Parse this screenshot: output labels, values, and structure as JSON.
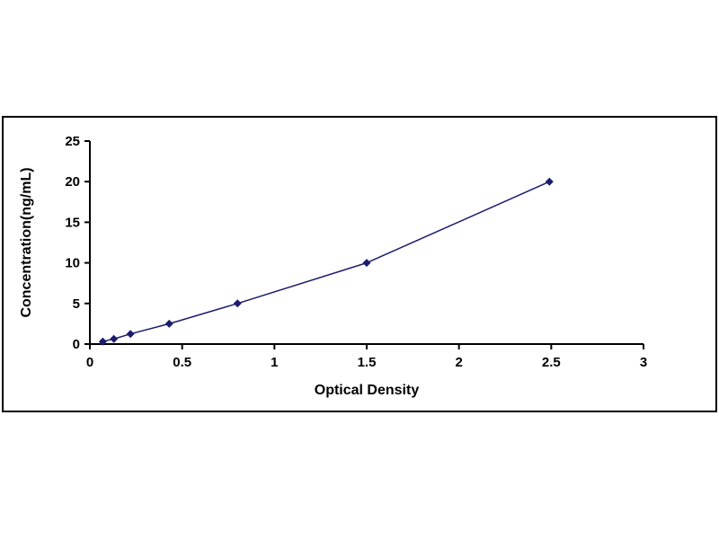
{
  "page": {
    "background": "#ffffff"
  },
  "chart_data": {
    "type": "line",
    "title": "",
    "xlabel": "Optical Density",
    "ylabel": "Concentration(ng/mL)",
    "x": [
      0.07,
      0.13,
      0.22,
      0.43,
      0.8,
      1.5,
      2.49
    ],
    "y": [
      0.31,
      0.63,
      1.25,
      2.5,
      5,
      10,
      20
    ],
    "xlim": [
      0,
      3
    ],
    "ylim": [
      0,
      25
    ],
    "x_ticks": [
      0,
      0.5,
      1,
      1.5,
      2,
      2.5,
      3
    ],
    "x_tick_labels": [
      "0",
      "0.5",
      "1",
      "1.5",
      "2",
      "2.5",
      "3"
    ],
    "y_ticks": [
      0,
      5,
      10,
      15,
      20,
      25
    ],
    "y_tick_labels": [
      "0",
      "5",
      "10",
      "15",
      "20",
      "25"
    ],
    "grid": false,
    "legend": false,
    "marker": "diamond",
    "line_color": "#1c1c6e",
    "marker_color": "#1c1c6e",
    "axis_color": "#000000",
    "tick_font_size": 15,
    "label_font_size": 16
  }
}
